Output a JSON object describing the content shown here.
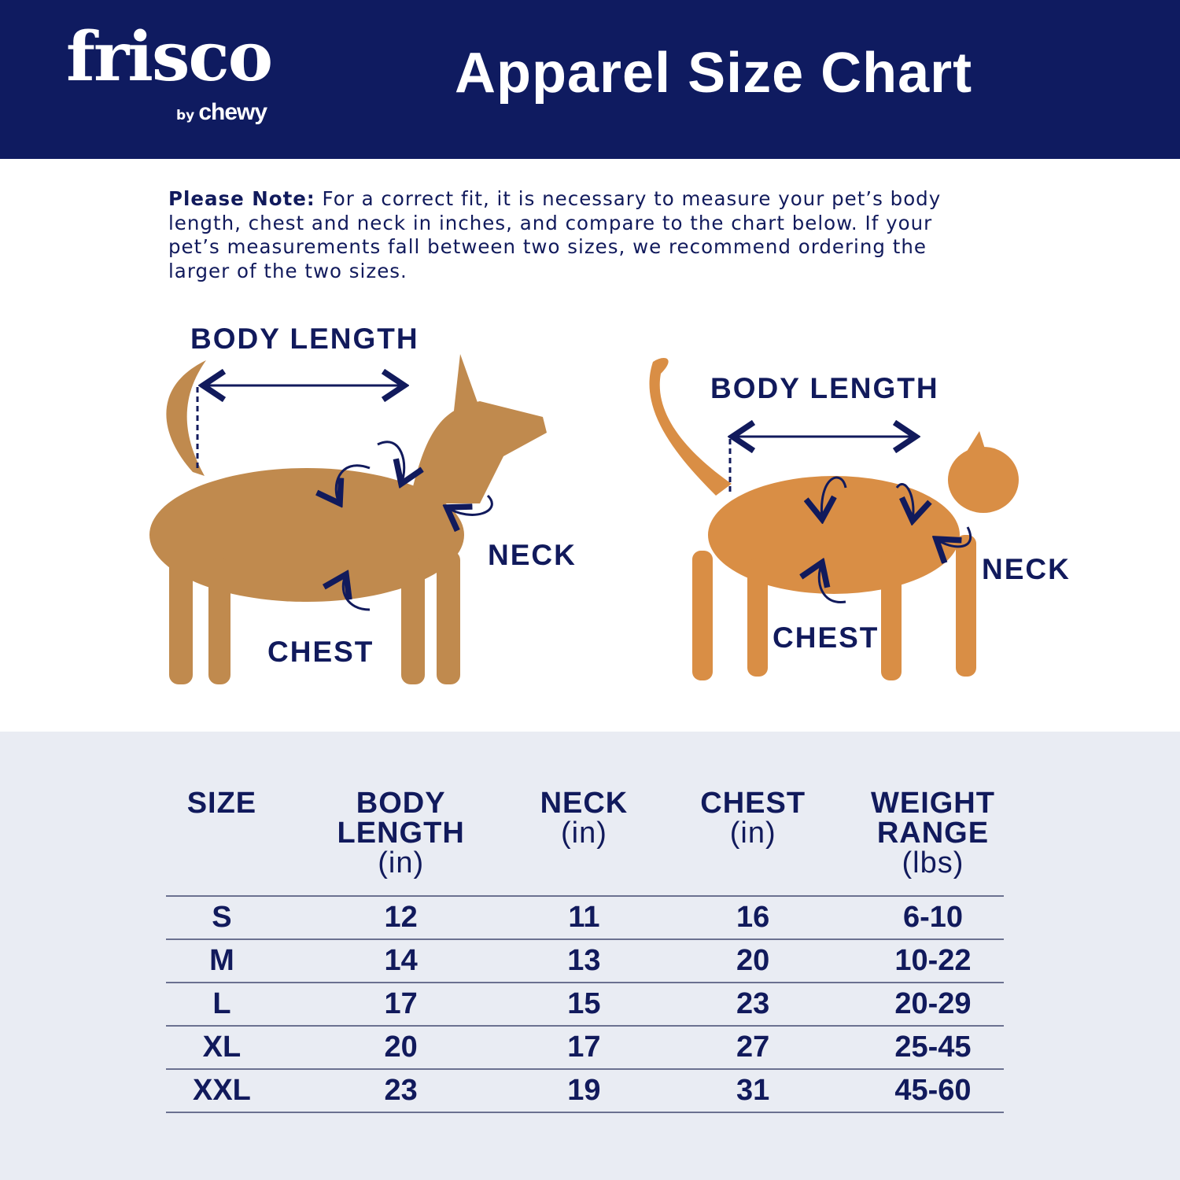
{
  "header": {
    "logo_text": "frisco",
    "logo_sub_by": "by",
    "logo_sub_brand": "chewy",
    "title": "Apparel Size Chart"
  },
  "note": {
    "label": "Please Note:",
    "text": "For a correct fit, it is necessary to measure your pet’s body length, chest and neck in inches, and compare to the chart below. If your pet’s measurements fall between two sizes, we recommend ordering the larger of the two sizes."
  },
  "diagram": {
    "dog": {
      "body_length": "BODY LENGTH",
      "neck": "NECK",
      "chest": "CHEST"
    },
    "cat": {
      "body_length": "BODY LENGTH",
      "neck": "NECK",
      "chest": "CHEST"
    }
  },
  "table": {
    "headers": [
      {
        "title": "SIZE",
        "unit": ""
      },
      {
        "title": "BODY LENGTH",
        "unit": "(in)"
      },
      {
        "title": "NECK",
        "unit": "(in)"
      },
      {
        "title": "CHEST",
        "unit": "(in)"
      },
      {
        "title": "WEIGHT RANGE",
        "unit": "(lbs)"
      }
    ],
    "rows": [
      [
        "S",
        "12",
        "11",
        "16",
        "6-10"
      ],
      [
        "M",
        "14",
        "13",
        "20",
        "10-22"
      ],
      [
        "L",
        "17",
        "15",
        "23",
        "20-29"
      ],
      [
        "XL",
        "20",
        "17",
        "27",
        "25-45"
      ],
      [
        "XXL",
        "23",
        "19",
        "31",
        "45-60"
      ]
    ]
  },
  "colors": {
    "navy": "#0f1b60",
    "table_bg": "#e9ecf3",
    "dog": "#c08a4e",
    "cat": "#d98e45"
  }
}
